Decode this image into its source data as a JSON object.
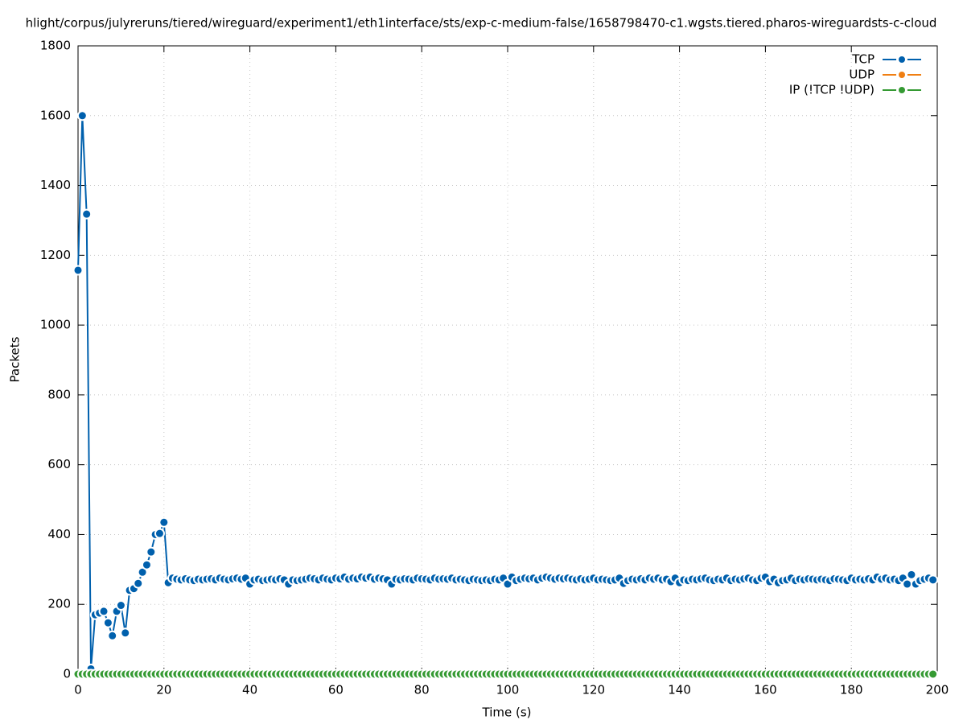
{
  "chart_data": {
    "type": "line",
    "title": "hlight/corpus/julyreruns/tiered/wireguard/experiment1/eth1interface/sts/exp-c-medium-false/1658798470-c1.wgsts.tiered.pharos-wireguardsts-c-cloud",
    "x_label": "Time (s)",
    "y_label": "Packets",
    "x": [
      0,
      1,
      2,
      3,
      4,
      5,
      6,
      7,
      8,
      9,
      10,
      11,
      12,
      13,
      14,
      15,
      16,
      17,
      18,
      19,
      20,
      21,
      22,
      23,
      24,
      25,
      26,
      27,
      28,
      29,
      30,
      31,
      32,
      33,
      34,
      35,
      36,
      37,
      38,
      39,
      40,
      41,
      42,
      43,
      44,
      45,
      46,
      47,
      48,
      49,
      50,
      51,
      52,
      53,
      54,
      55,
      56,
      57,
      58,
      59,
      60,
      61,
      62,
      63,
      64,
      65,
      66,
      67,
      68,
      69,
      70,
      71,
      72,
      73,
      74,
      75,
      76,
      77,
      78,
      79,
      80,
      81,
      82,
      83,
      84,
      85,
      86,
      87,
      88,
      89,
      90,
      91,
      92,
      93,
      94,
      95,
      96,
      97,
      98,
      99,
      100,
      101,
      102,
      103,
      104,
      105,
      106,
      107,
      108,
      109,
      110,
      111,
      112,
      113,
      114,
      115,
      116,
      117,
      118,
      119,
      120,
      121,
      122,
      123,
      124,
      125,
      126,
      127,
      128,
      129,
      130,
      131,
      132,
      133,
      134,
      135,
      136,
      137,
      138,
      139,
      140,
      141,
      142,
      143,
      144,
      145,
      146,
      147,
      148,
      149,
      150,
      151,
      152,
      153,
      154,
      155,
      156,
      157,
      158,
      159,
      160,
      161,
      162,
      163,
      164,
      165,
      166,
      167,
      168,
      169,
      170,
      171,
      172,
      173,
      174,
      175,
      176,
      177,
      178,
      179,
      180,
      181,
      182,
      183,
      184,
      185,
      186,
      187,
      188,
      189,
      190,
      191,
      192,
      193,
      194,
      195,
      196,
      197,
      198,
      199
    ],
    "series": [
      {
        "name": "TCP",
        "color": "#0060ad",
        "values": [
          1157,
          1600,
          1318,
          15,
          170,
          175,
          180,
          147,
          110,
          180,
          197,
          118,
          240,
          245,
          260,
          292,
          313,
          350,
          400,
          403,
          435,
          262,
          275,
          272,
          270,
          273,
          270,
          268,
          272,
          270,
          272,
          273,
          270,
          275,
          272,
          270,
          273,
          275,
          272,
          275,
          258,
          270,
          272,
          268,
          270,
          272,
          270,
          273,
          270,
          258,
          270,
          268,
          270,
          272,
          275,
          273,
          270,
          275,
          272,
          270,
          275,
          273,
          278,
          272,
          275,
          273,
          278,
          275,
          278,
          272,
          275,
          273,
          270,
          258,
          272,
          270,
          273,
          272,
          270,
          275,
          273,
          272,
          270,
          275,
          272,
          273,
          272,
          275,
          270,
          272,
          270,
          268,
          272,
          270,
          268,
          270,
          268,
          272,
          270,
          275,
          258,
          278,
          268,
          272,
          275,
          273,
          275,
          270,
          275,
          278,
          275,
          272,
          275,
          273,
          275,
          272,
          270,
          273,
          270,
          272,
          275,
          270,
          272,
          270,
          268,
          270,
          275,
          260,
          268,
          272,
          270,
          273,
          270,
          275,
          272,
          275,
          270,
          272,
          265,
          275,
          262,
          270,
          268,
          272,
          270,
          273,
          275,
          270,
          268,
          272,
          270,
          275,
          268,
          272,
          270,
          273,
          275,
          270,
          268,
          275,
          278,
          265,
          272,
          262,
          268,
          270,
          275,
          268,
          272,
          270,
          273,
          272,
          270,
          272,
          270,
          268,
          273,
          272,
          270,
          268,
          275,
          270,
          272,
          270,
          273,
          270,
          278,
          272,
          275,
          270,
          272,
          268,
          275,
          258,
          285,
          258,
          268,
          272,
          275,
          270
        ]
      },
      {
        "name": "UDP",
        "color": "#f07f13",
        "values": [
          0,
          0,
          0,
          0,
          0,
          0,
          0,
          0,
          0,
          0,
          0,
          0,
          0,
          0,
          0,
          0,
          0,
          0,
          0,
          0,
          0,
          0,
          0,
          0,
          0,
          0,
          0,
          0,
          0,
          0,
          0,
          0,
          0,
          0,
          0,
          0,
          0,
          0,
          0,
          0,
          0,
          0,
          0,
          0,
          0,
          0,
          0,
          0,
          0,
          0,
          0,
          0,
          0,
          0,
          0,
          0,
          0,
          0,
          0,
          0,
          0,
          0,
          0,
          0,
          0,
          0,
          0,
          0,
          0,
          0,
          0,
          0,
          0,
          0,
          0,
          0,
          0,
          0,
          0,
          0,
          0,
          0,
          0,
          0,
          0,
          0,
          0,
          0,
          0,
          0,
          0,
          0,
          0,
          0,
          0,
          0,
          0,
          0,
          0,
          0,
          0,
          0,
          0,
          0,
          0,
          0,
          0,
          0,
          0,
          0,
          0,
          0,
          0,
          0,
          0,
          0,
          0,
          0,
          0,
          0,
          0,
          0,
          0,
          0,
          0,
          0,
          0,
          0,
          0,
          0,
          0,
          0,
          0,
          0,
          0,
          0,
          0,
          0,
          0,
          0,
          0,
          0,
          0,
          0,
          0,
          0,
          0,
          0,
          0,
          0,
          0,
          0,
          0,
          0,
          0,
          0,
          0,
          0,
          0,
          0,
          0,
          0,
          0,
          0,
          0,
          0,
          0,
          0,
          0,
          0,
          0,
          0,
          0,
          0,
          0,
          0,
          0,
          0,
          0,
          0,
          0,
          0,
          0,
          0,
          0,
          0,
          0,
          0,
          0,
          0,
          0,
          0,
          0,
          0,
          0,
          0,
          0,
          0,
          0,
          0
        ]
      },
      {
        "name": "IP (!TCP  !UDP)",
        "color": "#359a33",
        "values": [
          0,
          0,
          0,
          0,
          0,
          0,
          0,
          0,
          0,
          0,
          0,
          0,
          0,
          0,
          0,
          0,
          0,
          0,
          0,
          0,
          0,
          0,
          0,
          0,
          0,
          0,
          0,
          0,
          0,
          0,
          0,
          0,
          0,
          0,
          0,
          0,
          0,
          0,
          0,
          0,
          0,
          0,
          0,
          0,
          0,
          0,
          0,
          0,
          0,
          0,
          0,
          0,
          0,
          0,
          0,
          0,
          0,
          0,
          0,
          0,
          0,
          0,
          0,
          0,
          0,
          0,
          0,
          0,
          0,
          0,
          0,
          0,
          0,
          0,
          0,
          0,
          0,
          0,
          0,
          0,
          0,
          0,
          0,
          0,
          0,
          0,
          0,
          0,
          0,
          0,
          0,
          0,
          0,
          0,
          0,
          0,
          0,
          0,
          0,
          0,
          0,
          0,
          0,
          0,
          0,
          0,
          0,
          0,
          0,
          0,
          0,
          0,
          0,
          0,
          0,
          0,
          0,
          0,
          0,
          0,
          0,
          0,
          0,
          0,
          0,
          0,
          0,
          0,
          0,
          0,
          0,
          0,
          0,
          0,
          0,
          0,
          0,
          0,
          0,
          0,
          0,
          0,
          0,
          0,
          0,
          0,
          0,
          0,
          0,
          0,
          0,
          0,
          0,
          0,
          0,
          0,
          0,
          0,
          0,
          0,
          0,
          0,
          0,
          0,
          0,
          0,
          0,
          0,
          0,
          0,
          0,
          0,
          0,
          0,
          0,
          0,
          0,
          0,
          0,
          0,
          0,
          0,
          0,
          0,
          0,
          0,
          0,
          0,
          0,
          0,
          0,
          0,
          0,
          0,
          0,
          0,
          0,
          0,
          0,
          0
        ]
      }
    ],
    "xlim": [
      0,
      200
    ],
    "xticks": [
      0,
      20,
      40,
      60,
      80,
      100,
      120,
      140,
      160,
      180,
      200
    ],
    "ylim": [
      0,
      1800
    ],
    "yticks": [
      0,
      200,
      400,
      600,
      800,
      1000,
      1200,
      1400,
      1600,
      1800
    ],
    "grid": true,
    "legend_position": "top-right"
  }
}
